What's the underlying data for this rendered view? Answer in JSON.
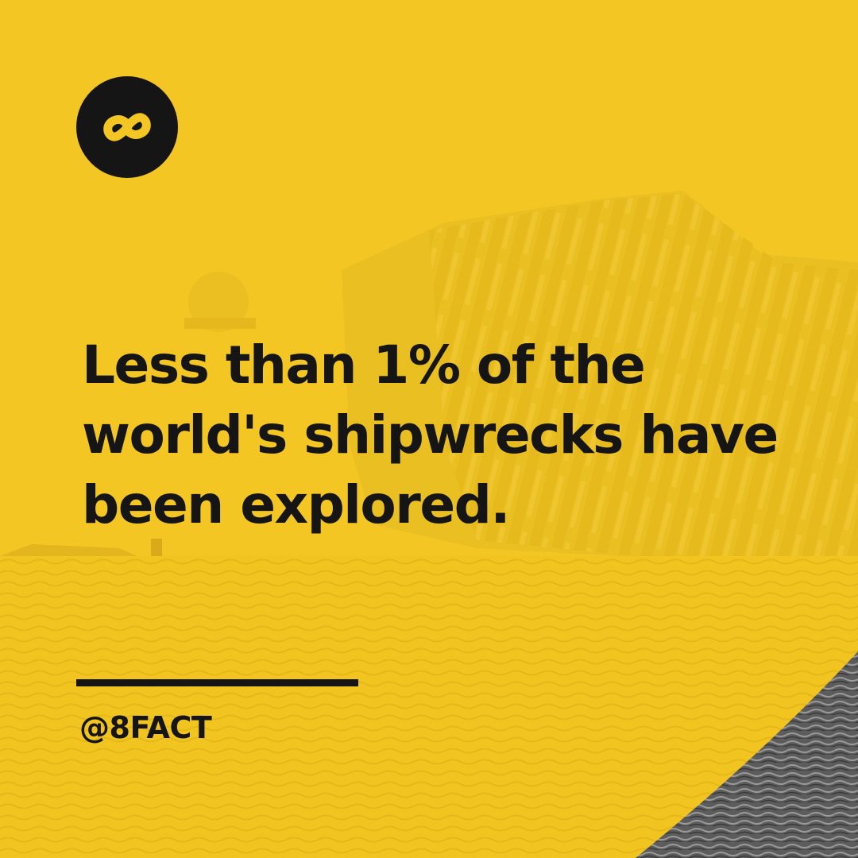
{
  "brand": {
    "logo_icon": "infinity-eight-icon",
    "handle": "@8FACT"
  },
  "fact": {
    "line1": "Less than 1% of the",
    "line2": "world's shipwrecks have",
    "line3": "been explored."
  },
  "colors": {
    "background": "#f3c624",
    "text": "#151515",
    "sea_corner": "#6a6a6a"
  }
}
